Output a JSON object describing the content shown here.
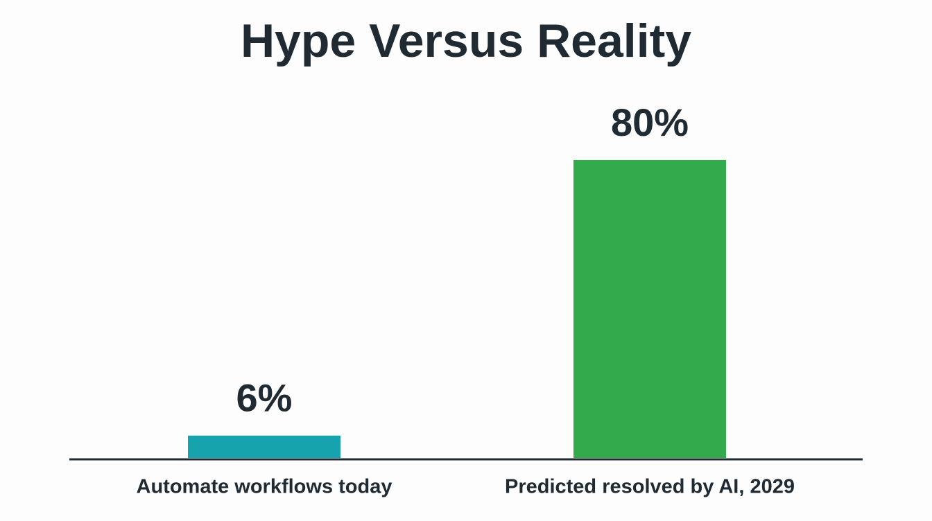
{
  "chart_data": {
    "type": "bar",
    "title": "Hype Versus Reality",
    "categories": [
      "Automate workflows today",
      "Predicted resolved by AI, 2029"
    ],
    "values": [
      6,
      80
    ],
    "value_labels": [
      "6%",
      "80%"
    ],
    "colors": [
      "#16a3ad",
      "#33aa4b"
    ]
  }
}
